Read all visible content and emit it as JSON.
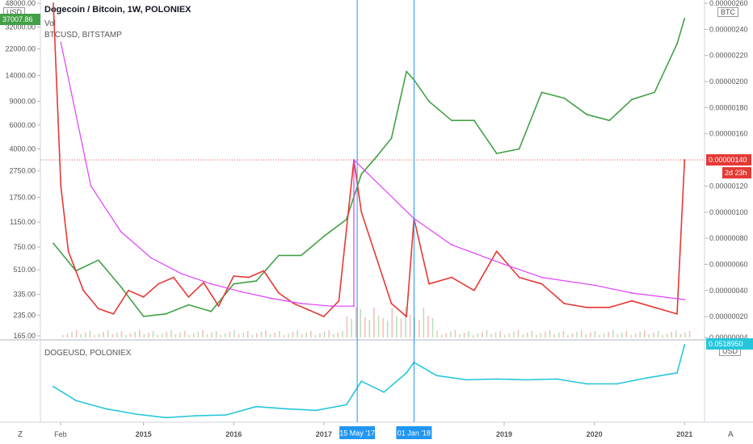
{
  "header": {
    "title": "Dogecoin / Bitcoin, 1W, POLONIEX",
    "vol_label": "Vol",
    "btcusd_label": "BTCUSD, BITSTAMP",
    "doge_label": "DOGEUSD, POLONIEX"
  },
  "scale_badges": {
    "right_top": "BTC",
    "left_top": "USD",
    "right_bottom": "USD"
  },
  "corner_labels": {
    "left": "Z",
    "right": "A"
  },
  "colors": {
    "dogebtc": "#e53935",
    "btcusd": "#43a047",
    "trend": "#e040fb",
    "dogeusd": "#26c6da",
    "crosshair": "#2196f3",
    "price_line": "#e53935"
  },
  "price_tags": {
    "dogebtc_last": "0.00000140",
    "countdown": "2d 23h",
    "btcusd_last": "37007.86",
    "dogeusd_last": "0.0518950"
  },
  "crosshair_labels": [
    "15 May '17",
    "01 Jan '18"
  ],
  "chart_data": [
    {
      "type": "line",
      "title": "Dogecoin / Bitcoin, 1W, POLONIEX",
      "x_ticks": [
        "Feb",
        "2015",
        "2016",
        "2017",
        "2019",
        "2020",
        "2021"
      ],
      "y_right_ticks": [
        "0.00000260",
        "0.00000240",
        "0.00000220",
        "0.00000200",
        "0.00000180",
        "0.00000160",
        "0.00000120",
        "0.00000100",
        "0.00000080",
        "0.00000060",
        "0.00000040",
        "0.00000020",
        "0.00000004"
      ],
      "y_left_ticks": [
        "48000.00",
        "32000.00",
        "22000.00",
        "14000.00",
        "9000.00",
        "6000.00",
        "4000.00",
        "2750.00",
        "1750.00",
        "1150.00",
        "750.00",
        "510.00",
        "335.00",
        "235.00",
        "165.00"
      ],
      "y_left_scale": "log",
      "series": [
        {
          "name": "Dogecoin / Bitcoin",
          "axis": "right",
          "x": [
            "2014-01",
            "2014-02",
            "2014-03",
            "2014-05",
            "2014-07",
            "2014-09",
            "2014-11",
            "2015-01",
            "2015-03",
            "2015-05",
            "2015-07",
            "2015-09",
            "2015-11",
            "2016-01",
            "2016-03",
            "2016-05",
            "2016-07",
            "2016-09",
            "2016-11",
            "2017-01",
            "2017-03",
            "2017-05",
            "2017-06",
            "2017-08",
            "2017-10",
            "2017-12",
            "2018-01",
            "2018-03",
            "2018-06",
            "2018-09",
            "2018-12",
            "2019-03",
            "2019-06",
            "2019-09",
            "2019-12",
            "2020-03",
            "2020-06",
            "2020-09",
            "2020-12",
            "2021-01"
          ],
          "values": [
            2.6e-06,
            1.2e-06,
            7e-07,
            4e-07,
            2.6e-07,
            2.2e-07,
            4e-07,
            3.5e-07,
            4.5e-07,
            5e-07,
            3.5e-07,
            4.6e-07,
            2.8e-07,
            5.1e-07,
            5e-07,
            5.5e-07,
            3.8e-07,
            3e-07,
            2.5e-07,
            2e-07,
            3.2e-07,
            1.4e-06,
            1e-06,
            6.5e-07,
            3e-07,
            2e-07,
            9.5e-07,
            4.5e-07,
            5e-07,
            4e-07,
            7e-07,
            5e-07,
            4.5e-07,
            3e-07,
            2.7e-07,
            2.7e-07,
            3.2e-07,
            2.7e-07,
            2.2e-07,
            1.4e-06
          ]
        },
        {
          "name": "BTCUSD, BITSTAMP",
          "axis": "left",
          "x": [
            "2014-01",
            "2014-04",
            "2014-07",
            "2014-10",
            "2015-01",
            "2015-04",
            "2015-07",
            "2015-10",
            "2016-01",
            "2016-04",
            "2016-07",
            "2016-10",
            "2017-01",
            "2017-04",
            "2017-06",
            "2017-08",
            "2017-10",
            "2017-12",
            "2018-01",
            "2018-03",
            "2018-06",
            "2018-09",
            "2018-12",
            "2019-03",
            "2019-06",
            "2019-09",
            "2019-12",
            "2020-03",
            "2020-06",
            "2020-09",
            "2020-12",
            "2021-01"
          ],
          "values": [
            800,
            500,
            600,
            380,
            230,
            240,
            280,
            250,
            400,
            420,
            650,
            650,
            900,
            1200,
            2600,
            3500,
            4800,
            15000,
            13000,
            9000,
            6500,
            6500,
            3700,
            4000,
            10500,
            9500,
            7200,
            6500,
            9300,
            10500,
            24000,
            37007.86
          ]
        },
        {
          "name": "Trend line",
          "axis": "right",
          "x": [
            "2014-02",
            "2014-06",
            "2014-10",
            "2015-02",
            "2015-06",
            "2015-10",
            "2016-02",
            "2016-06",
            "2016-10",
            "2017-02",
            "2017-05",
            "2017-05",
            "2018-01",
            "2018-06",
            "2019-01",
            "2019-06",
            "2020-01",
            "2020-06",
            "2021-01"
          ],
          "values": [
            2.3e-06,
            1.2e-06,
            8.5e-07,
            6.5e-07,
            5.3e-07,
            4.5e-07,
            3.9e-07,
            3.4e-07,
            3e-07,
            2.8e-07,
            2.8e-07,
            1.4e-06,
            9.5e-07,
            7.5e-07,
            6e-07,
            5e-07,
            4.4e-07,
            3.8e-07,
            3.3e-07
          ]
        }
      ]
    },
    {
      "type": "line",
      "title": "DOGEUSD, POLONIEX",
      "series": [
        {
          "name": "DOGEUSD, POLONIEX",
          "x": [
            "2014-01",
            "2014-04",
            "2014-08",
            "2014-12",
            "2015-04",
            "2015-08",
            "2015-12",
            "2016-04",
            "2016-08",
            "2016-12",
            "2017-04",
            "2017-06",
            "2017-09",
            "2017-12",
            "2018-01",
            "2018-04",
            "2018-08",
            "2018-12",
            "2019-04",
            "2019-08",
            "2019-12",
            "2020-04",
            "2020-08",
            "2020-12",
            "2021-01"
          ],
          "values": [
            0.0016,
            0.0005,
            0.00025,
            0.00016,
            0.00012,
            0.00014,
            0.00015,
            0.0003,
            0.00025,
            0.00022,
            0.00035,
            0.0025,
            0.001,
            0.005,
            0.012,
            0.004,
            0.0028,
            0.003,
            0.0028,
            0.003,
            0.002,
            0.002,
            0.0033,
            0.005,
            0.051895
          ]
        }
      ]
    }
  ]
}
